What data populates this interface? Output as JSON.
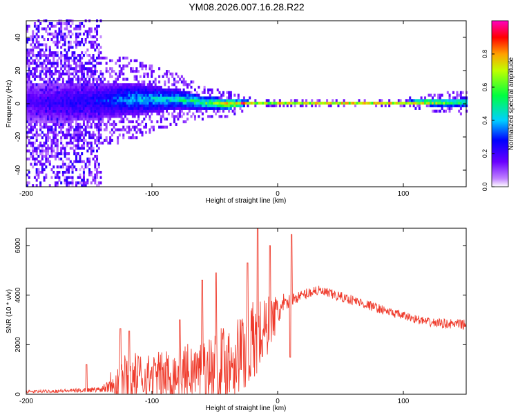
{
  "title": "YM08.2026.007.16.28.R22",
  "chart_data": [
    {
      "type": "heatmap",
      "xlabel": "Height of straight line (km)",
      "ylabel": "Frequency (Hz)",
      "xlim": [
        -200,
        150
      ],
      "ylim": [
        -50,
        50
      ],
      "xticks": [
        -200,
        -100,
        0,
        100
      ],
      "yticks": [
        -40,
        -20,
        0,
        20,
        40
      ],
      "colorbar": {
        "label": "Normalized spectral amplitude",
        "range": [
          0,
          1
        ],
        "ticks": [
          "0.0",
          "0.2",
          "0.4",
          "0.6",
          "0.8"
        ],
        "tick_values": [
          0,
          0.2,
          0.4,
          0.6,
          0.8
        ]
      },
      "band_trace": [
        {
          "x": -195,
          "center": 0,
          "halfwidth": 12,
          "amp": 0.2
        },
        {
          "x": -170,
          "center": 0,
          "halfwidth": 12,
          "amp": 0.25
        },
        {
          "x": -140,
          "center": 1,
          "halfwidth": 11,
          "amp": 0.3
        },
        {
          "x": -120,
          "center": 2,
          "halfwidth": 10,
          "amp": 0.4
        },
        {
          "x": -100,
          "center": 2,
          "halfwidth": 8,
          "amp": 0.45
        },
        {
          "x": -80,
          "center": 2,
          "halfwidth": 6,
          "amp": 0.5
        },
        {
          "x": -60,
          "center": 0,
          "halfwidth": 4,
          "amp": 0.6
        },
        {
          "x": -40,
          "center": -1,
          "halfwidth": 3,
          "amp": 0.85
        },
        {
          "x": -20,
          "center": 0,
          "halfwidth": 1,
          "amp": 0.95
        },
        {
          "x": 0,
          "center": 0,
          "halfwidth": 1,
          "amp": 1.0
        },
        {
          "x": 50,
          "center": 0,
          "halfwidth": 1,
          "amp": 1.0
        },
        {
          "x": 100,
          "center": 0,
          "halfwidth": 1,
          "amp": 1.0
        },
        {
          "x": 120,
          "center": 0,
          "halfwidth": 2,
          "amp": 0.8
        },
        {
          "x": 150,
          "center": 0,
          "halfwidth": 3,
          "amp": 0.55
        }
      ]
    },
    {
      "type": "line",
      "xlabel": "Height of straight line (km)",
      "ylabel": "SNR (10 * v/v)",
      "xlim": [
        -200,
        150
      ],
      "ylim": [
        0,
        6700
      ],
      "xticks": [
        -200,
        -100,
        0,
        100
      ],
      "yticks": [
        0,
        2000,
        4000,
        6000
      ],
      "color": "#ef3b2c",
      "envelope": [
        {
          "x": -200,
          "base": 100,
          "spread": 120
        },
        {
          "x": -160,
          "base": 150,
          "spread": 180
        },
        {
          "x": -140,
          "base": 200,
          "spread": 250
        },
        {
          "x": -130,
          "base": 600,
          "spread": 1400
        },
        {
          "x": -100,
          "base": 700,
          "spread": 1200
        },
        {
          "x": -80,
          "base": 800,
          "spread": 1400
        },
        {
          "x": -60,
          "base": 900,
          "spread": 1700
        },
        {
          "x": -40,
          "base": 1300,
          "spread": 2000
        },
        {
          "x": -20,
          "base": 2000,
          "spread": 2200
        },
        {
          "x": -10,
          "base": 2600,
          "spread": 1700
        },
        {
          "x": 0,
          "base": 3300,
          "spread": 900
        },
        {
          "x": 10,
          "base": 3800,
          "spread": 500
        },
        {
          "x": 30,
          "base": 4200,
          "spread": 500
        },
        {
          "x": 60,
          "base": 3800,
          "spread": 450
        },
        {
          "x": 90,
          "base": 3300,
          "spread": 400
        },
        {
          "x": 120,
          "base": 2900,
          "spread": 400
        },
        {
          "x": 150,
          "base": 2800,
          "spread": 450
        }
      ],
      "spikes": [
        {
          "x": -152,
          "y": 1200
        },
        {
          "x": -125,
          "y": 2650
        },
        {
          "x": -118,
          "y": 2550
        },
        {
          "x": -78,
          "y": 3000
        },
        {
          "x": -60,
          "y": 4600
        },
        {
          "x": -49,
          "y": 4900
        },
        {
          "x": -24,
          "y": 5300
        },
        {
          "x": -16,
          "y": 6700
        },
        {
          "x": -6,
          "y": 6000
        },
        {
          "x": 11,
          "y": 6450
        },
        {
          "x": 10,
          "y": 1500
        }
      ]
    }
  ]
}
